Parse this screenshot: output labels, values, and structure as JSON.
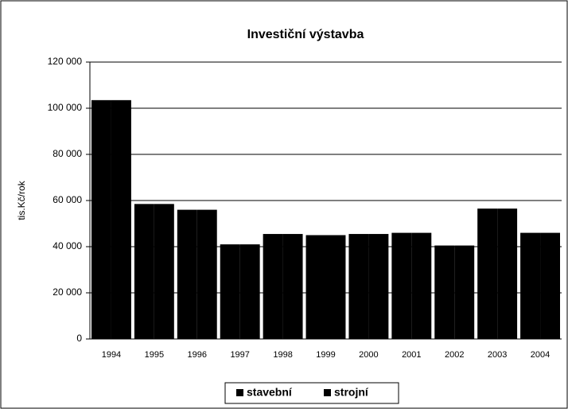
{
  "chart_data": {
    "type": "bar",
    "title": "Investiční výstavba",
    "y_label": "tis.Kč/rok",
    "categories": [
      "1994",
      "1995",
      "1996",
      "1997",
      "1998",
      "1999",
      "2000",
      "2001",
      "2002",
      "2003",
      "2004"
    ],
    "series": [
      {
        "name": "stavební",
        "color": "#000000",
        "values": [
          103500,
          58500,
          56000,
          41000,
          45500,
          45000,
          45500,
          46000,
          40500,
          56500,
          46000
        ]
      },
      {
        "name": "strojní",
        "color": "#000000",
        "values": [
          103500,
          58500,
          56000,
          41000,
          45500,
          45000,
          45500,
          46000,
          40500,
          56500,
          46000
        ]
      }
    ],
    "ylim": [
      0,
      120000
    ],
    "yticks": [
      0,
      {
        "value": 20000,
        "label": "20 000"
      },
      {
        "value": 40000,
        "label": "40 000"
      },
      {
        "value": 60000,
        "label": "60 000"
      },
      {
        "value": 80000,
        "label": "80 000"
      },
      {
        "value": 100000,
        "label": "100 000"
      },
      {
        "value": 120000,
        "label": "120 000"
      }
    ],
    "grid": true,
    "legend": "bottom"
  }
}
